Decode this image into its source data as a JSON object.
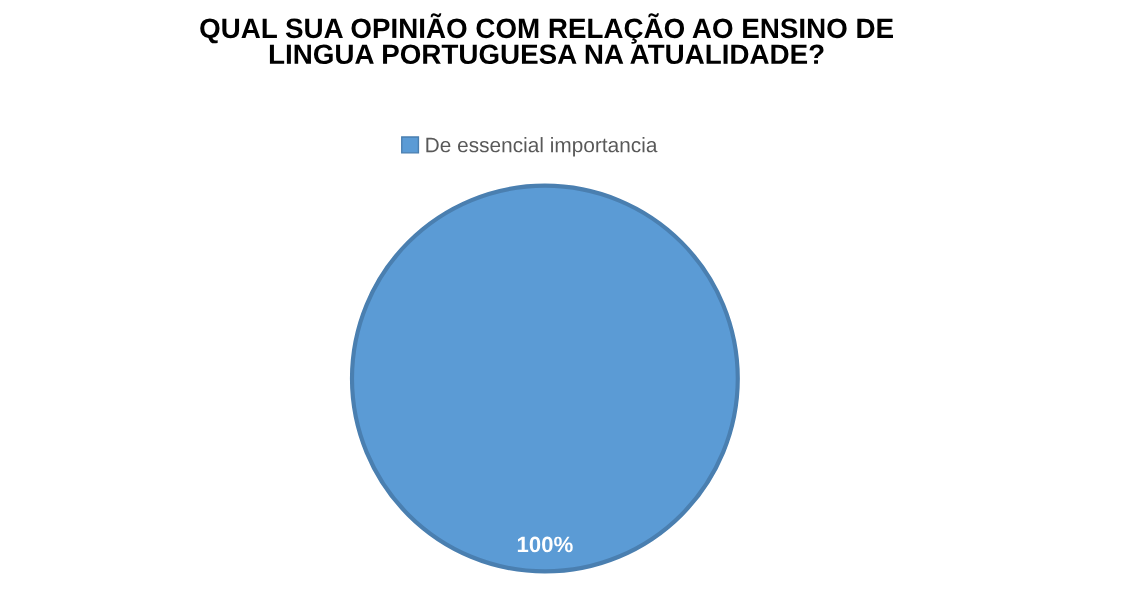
{
  "chart_data": {
    "type": "pie",
    "title": "QUAL SUA OPINIÃO COM RELAÇÃO AO ENSINO DE\nLINGUA PORTUGUESA NA ATUALIDADE?",
    "categories": [
      "De essencial importancia"
    ],
    "values": [
      100
    ],
    "colors": [
      "#5b9bd5"
    ],
    "value_labels": [
      "100%"
    ],
    "legend": "top"
  }
}
